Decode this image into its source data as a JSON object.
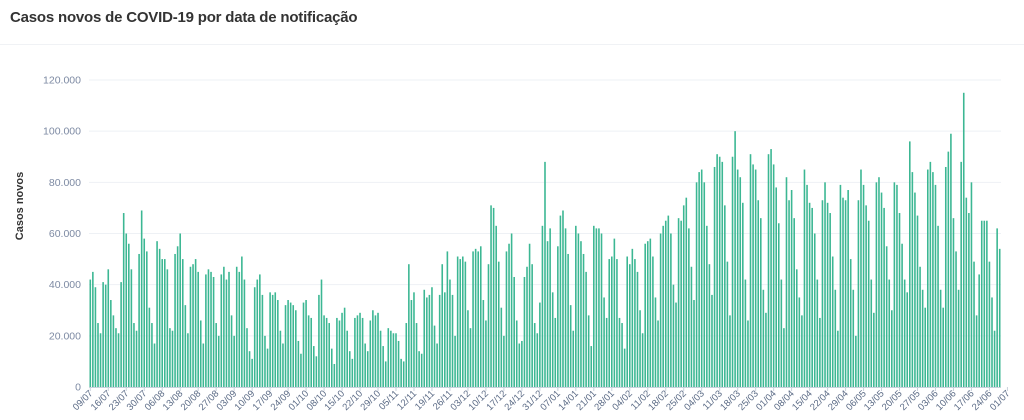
{
  "page": {
    "title": "Casos novos de COVID-19 por data de notificação"
  },
  "chart_data": {
    "type": "bar",
    "title": "Casos novos de COVID-19 por data de notificação",
    "xlabel": "",
    "ylabel": "Casos novos",
    "ylim": [
      0,
      120000
    ],
    "yticks": [
      0,
      20000,
      40000,
      60000,
      80000,
      100000,
      120000
    ],
    "ytick_labels": [
      "0",
      "20.000",
      "40.000",
      "60.000",
      "80.000",
      "100.000",
      "120.000"
    ],
    "grid": true,
    "legend": "none",
    "bar_color": "#3cb793",
    "start_date": "2020-07-09",
    "xtick_labels": [
      "09/07",
      "16/07",
      "23/07",
      "30/07",
      "06/08",
      "13/08",
      "20/08",
      "27/08",
      "03/09",
      "10/09",
      "17/09",
      "24/09",
      "01/10",
      "08/10",
      "15/10",
      "22/10",
      "29/10",
      "05/11",
      "12/11",
      "19/11",
      "26/11",
      "03/12",
      "10/12",
      "17/12",
      "24/12",
      "31/12",
      "07/01",
      "14/01",
      "21/01",
      "28/01",
      "04/02",
      "11/02",
      "18/02",
      "25/02",
      "04/03",
      "11/03",
      "18/03",
      "25/03",
      "01/04",
      "08/04",
      "15/04",
      "22/04",
      "29/04",
      "06/05",
      "13/05",
      "20/05",
      "27/05",
      "03/06",
      "10/06",
      "17/06",
      "24/06",
      "01/07"
    ],
    "values": [
      42000,
      45000,
      39000,
      25000,
      21000,
      41000,
      40000,
      46000,
      34000,
      28000,
      23000,
      21000,
      41000,
      68000,
      60000,
      56000,
      46000,
      25000,
      22000,
      52000,
      69000,
      58000,
      53000,
      31000,
      25000,
      17000,
      57000,
      54000,
      50000,
      50000,
      46000,
      23000,
      22000,
      52000,
      55000,
      60000,
      50000,
      32000,
      21000,
      47000,
      48000,
      50000,
      45000,
      26000,
      17000,
      44000,
      46000,
      45000,
      43000,
      25000,
      20000,
      44000,
      47000,
      42000,
      45000,
      28000,
      20000,
      47000,
      45000,
      51000,
      42000,
      23000,
      14000,
      11000,
      39000,
      42000,
      44000,
      36000,
      20000,
      15000,
      37000,
      36000,
      37000,
      34000,
      22000,
      17000,
      32000,
      34000,
      33000,
      32000,
      30000,
      18000,
      13000,
      33000,
      34000,
      28000,
      27000,
      16000,
      12000,
      36000,
      42000,
      28000,
      27000,
      25000,
      15000,
      9000,
      27000,
      26000,
      29000,
      31000,
      22000,
      14000,
      11000,
      27000,
      28000,
      29000,
      27000,
      17000,
      14000,
      26000,
      30000,
      28000,
      29000,
      22000,
      16000,
      10000,
      23000,
      22000,
      21000,
      21000,
      18000,
      11000,
      10000,
      25000,
      48000,
      34000,
      37000,
      25000,
      14000,
      13000,
      38000,
      35000,
      36000,
      39000,
      24000,
      17000,
      36000,
      48000,
      37000,
      53000,
      42000,
      36000,
      20000,
      51000,
      50000,
      51000,
      49000,
      30000,
      23000,
      53000,
      54000,
      53000,
      55000,
      34000,
      26000,
      48000,
      71000,
      70000,
      63000,
      49000,
      31000,
      20000,
      53000,
      56000,
      60000,
      43000,
      26000,
      17000,
      18000,
      43000,
      47000,
      56000,
      48000,
      25000,
      21000,
      33000,
      63000,
      88000,
      57000,
      62000,
      37000,
      27000,
      55000,
      67000,
      69000,
      62000,
      52000,
      32000,
      22000,
      63000,
      60000,
      57000,
      52000,
      45000,
      28000,
      16000,
      63000,
      62000,
      62000,
      60000,
      35000,
      27000,
      50000,
      51000,
      58000,
      50000,
      27000,
      25000,
      15000,
      51000,
      48000,
      54000,
      50000,
      45000,
      30000,
      21000,
      56000,
      57000,
      58000,
      51000,
      35000,
      26000,
      60000,
      63000,
      65000,
      67000,
      60000,
      40000,
      33000,
      66000,
      65000,
      71000,
      74000,
      62000,
      47000,
      34000,
      80000,
      84000,
      85000,
      80000,
      63000,
      48000,
      36000,
      86000,
      91000,
      90000,
      88000,
      71000,
      49000,
      28000,
      90000,
      100000,
      85000,
      82000,
      72000,
      42000,
      26000,
      91000,
      87000,
      85000,
      73000,
      66000,
      38000,
      29000,
      91000,
      93000,
      87000,
      78000,
      64000,
      42000,
      23000,
      82000,
      73000,
      77000,
      66000,
      46000,
      35000,
      28000,
      85000,
      79000,
      72000,
      70000,
      60000,
      42000,
      27000,
      73000,
      80000,
      72000,
      68000,
      51000,
      38000,
      22000,
      79000,
      74000,
      73000,
      77000,
      50000,
      38000,
      20000,
      73000,
      85000,
      79000,
      71000,
      65000,
      42000,
      29000,
      80000,
      82000,
      76000,
      70000,
      55000,
      42000,
      30000,
      80000,
      79000,
      68000,
      56000,
      42000,
      37000,
      96000,
      84000,
      76000,
      67000,
      47000,
      38000,
      31000,
      85000,
      88000,
      84000,
      79000,
      63000,
      38000,
      31000,
      86000,
      92000,
      99000,
      66000,
      53000,
      38000,
      88000,
      115000,
      74000,
      68000,
      80000,
      49000,
      28000,
      44000,
      65000,
      65000,
      65000,
      49000,
      35000,
      22000,
      62000,
      54000
    ]
  }
}
